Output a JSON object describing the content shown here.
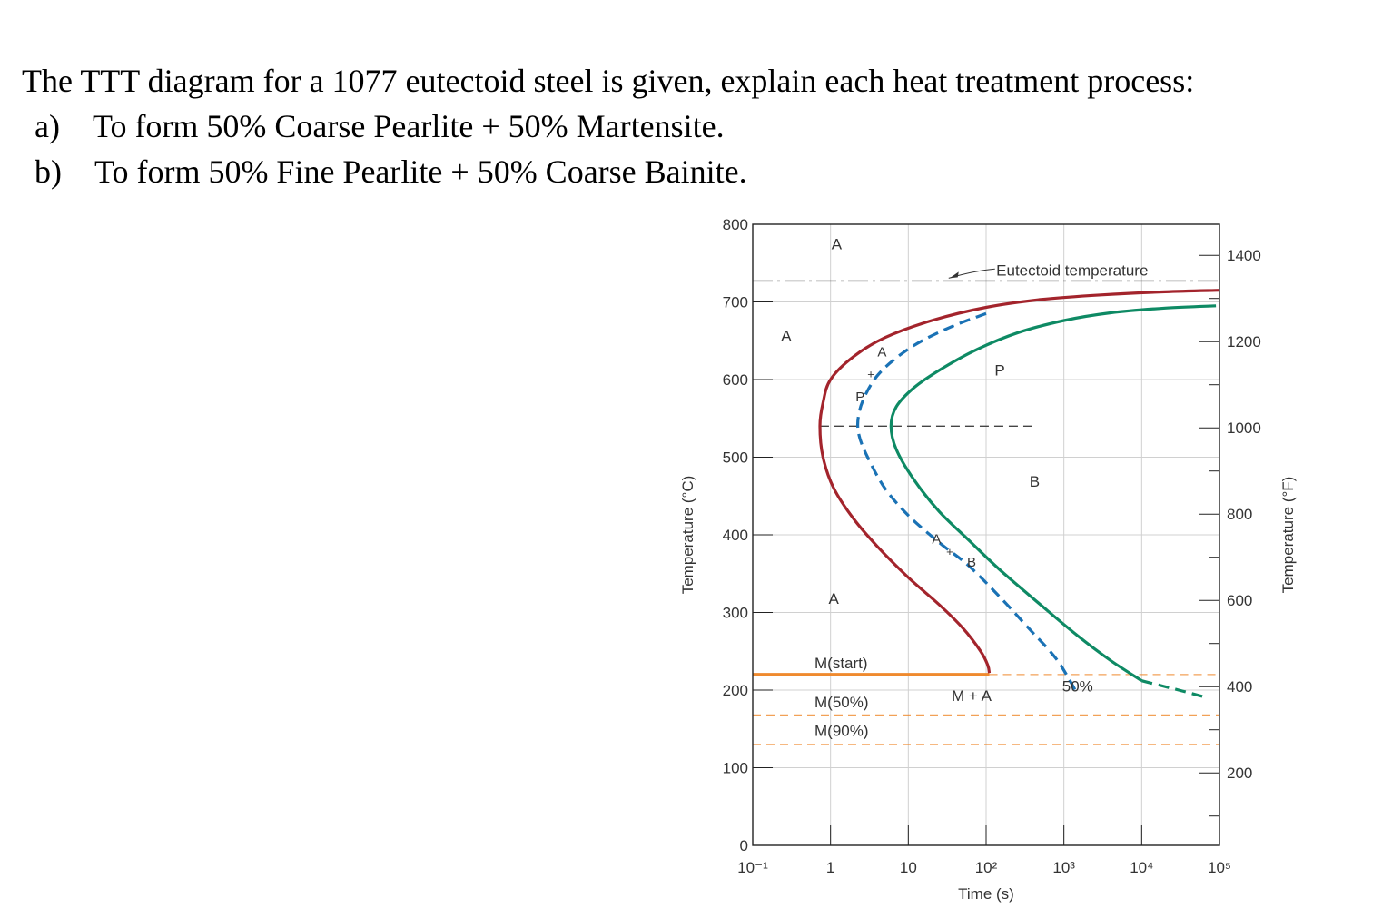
{
  "question": {
    "title": "The TTT diagram for a 1077 eutectoid steel is given, explain each heat treatment process:",
    "items": [
      "a) To form 50% Coarse Pearlite + 50% Martensite.",
      "b) To form 50% Fine Pearlite + 50% Coarse Bainite."
    ]
  },
  "chart_data": {
    "type": "line",
    "title": "",
    "xlabel": "Time (s)",
    "ylabel": "Temperature (°C)",
    "ylabel_right": "Temperature (°F)",
    "x_scale": "log",
    "xlim": [
      0.1,
      100000
    ],
    "ylim": [
      0,
      800
    ],
    "x_ticks": [
      {
        "value": 0.1,
        "label": "10⁻¹"
      },
      {
        "value": 1,
        "label": "1"
      },
      {
        "value": 10,
        "label": "10"
      },
      {
        "value": 100,
        "label": "10²"
      },
      {
        "value": 1000,
        "label": "10³"
      },
      {
        "value": 10000,
        "label": "10⁴"
      },
      {
        "value": 100000,
        "label": "10⁵"
      }
    ],
    "y_ticks": [
      0,
      100,
      200,
      300,
      400,
      500,
      600,
      700,
      800
    ],
    "y_ticks_right": [
      200,
      400,
      600,
      800,
      1000,
      1200,
      1400
    ],
    "grid": true,
    "colors": {
      "start": "#a3242c",
      "midpoint": "#1a72b5",
      "finish": "#0e8a64",
      "martensite": "#ef8a2e",
      "eutectoid": "#555555",
      "grid": "#d0d0d0"
    },
    "series": [
      {
        "key": "start",
        "style": "solid",
        "points": [
          [
            100000,
            715
          ],
          [
            20000,
            713
          ],
          [
            3000,
            709
          ],
          [
            500,
            703
          ],
          [
            100,
            693
          ],
          [
            20,
            676
          ],
          [
            5,
            654
          ],
          [
            2,
            630
          ],
          [
            1,
            600
          ],
          [
            0.8,
            570
          ],
          [
            0.73,
            540
          ],
          [
            0.8,
            500
          ],
          [
            1.1,
            460
          ],
          [
            2,
            420
          ],
          [
            4,
            385
          ],
          [
            10,
            345
          ],
          [
            25,
            310
          ],
          [
            50,
            280
          ],
          [
            85,
            250
          ],
          [
            105,
            232
          ],
          [
            110,
            222
          ]
        ]
      },
      {
        "key": "midpoint",
        "style": "dashed",
        "points": [
          [
            100,
            685
          ],
          [
            40,
            670
          ],
          [
            15,
            650
          ],
          [
            7,
            628
          ],
          [
            4,
            605
          ],
          [
            2.8,
            580
          ],
          [
            2.3,
            555
          ],
          [
            2.3,
            530
          ],
          [
            3,
            500
          ],
          [
            5,
            460
          ],
          [
            10,
            425
          ],
          [
            25,
            390
          ],
          [
            60,
            360
          ],
          [
            150,
            320
          ],
          [
            350,
            280
          ],
          [
            800,
            240
          ],
          [
            1400,
            200
          ]
        ]
      },
      {
        "key": "finish",
        "style": "solid",
        "points": [
          [
            90000,
            695
          ],
          [
            20000,
            692
          ],
          [
            4000,
            686
          ],
          [
            1000,
            676
          ],
          [
            250,
            660
          ],
          [
            70,
            637
          ],
          [
            25,
            612
          ],
          [
            12,
            590
          ],
          [
            7,
            565
          ],
          [
            6,
            540
          ],
          [
            7,
            510
          ],
          [
            12,
            470
          ],
          [
            25,
            430
          ],
          [
            60,
            393
          ],
          [
            150,
            355
          ],
          [
            500,
            310
          ],
          [
            1500,
            270
          ],
          [
            4000,
            238
          ],
          [
            10000,
            212
          ]
        ]
      },
      {
        "key": "finish-tail",
        "style": "dashed",
        "points": [
          [
            10000,
            212
          ],
          [
            30000,
            200
          ],
          [
            70000,
            190
          ]
        ]
      }
    ],
    "lines": {
      "eutectoid_temperature": 727,
      "nose_temperature": 540,
      "M_start": 220,
      "M_50": 168,
      "M_90": 130
    },
    "labels": {
      "eutectoid": "Eutectoid temperature",
      "A_top": "A",
      "A_left": "A",
      "P": "P",
      "B": "B",
      "A_low": "A",
      "M_A": "M + A",
      "fifty": "50%",
      "m_start": "M(start)",
      "m_50": "M(50%)",
      "m_90": "M(90%)",
      "mix_A_upper": "A",
      "mix_plus_upper": "+",
      "mix_P": "P",
      "mix_A_lower": "A",
      "mix_plus_lower": "+",
      "mix_B": "B"
    }
  }
}
